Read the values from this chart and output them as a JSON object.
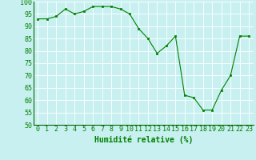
{
  "x": [
    0,
    1,
    2,
    3,
    4,
    5,
    6,
    7,
    8,
    9,
    10,
    11,
    12,
    13,
    14,
    15,
    16,
    17,
    18,
    19,
    20,
    21,
    22,
    23
  ],
  "y": [
    93,
    93,
    94,
    97,
    95,
    96,
    98,
    98,
    98,
    97,
    95,
    89,
    85,
    79,
    82,
    86,
    62,
    61,
    56,
    56,
    64,
    70,
    86,
    86
  ],
  "xlabel": "Humidité relative (%)",
  "ylim": [
    50,
    100
  ],
  "xlim": [
    -0.5,
    23.5
  ],
  "yticks": [
    50,
    55,
    60,
    65,
    70,
    75,
    80,
    85,
    90,
    95,
    100
  ],
  "xticks": [
    0,
    1,
    2,
    3,
    4,
    5,
    6,
    7,
    8,
    9,
    10,
    11,
    12,
    13,
    14,
    15,
    16,
    17,
    18,
    19,
    20,
    21,
    22,
    23
  ],
  "line_color": "#008000",
  "marker_color": "#008000",
  "bg_color": "#c8f0f0",
  "grid_color": "#b0dede",
  "xlabel_fontsize": 7,
  "tick_fontsize": 6
}
